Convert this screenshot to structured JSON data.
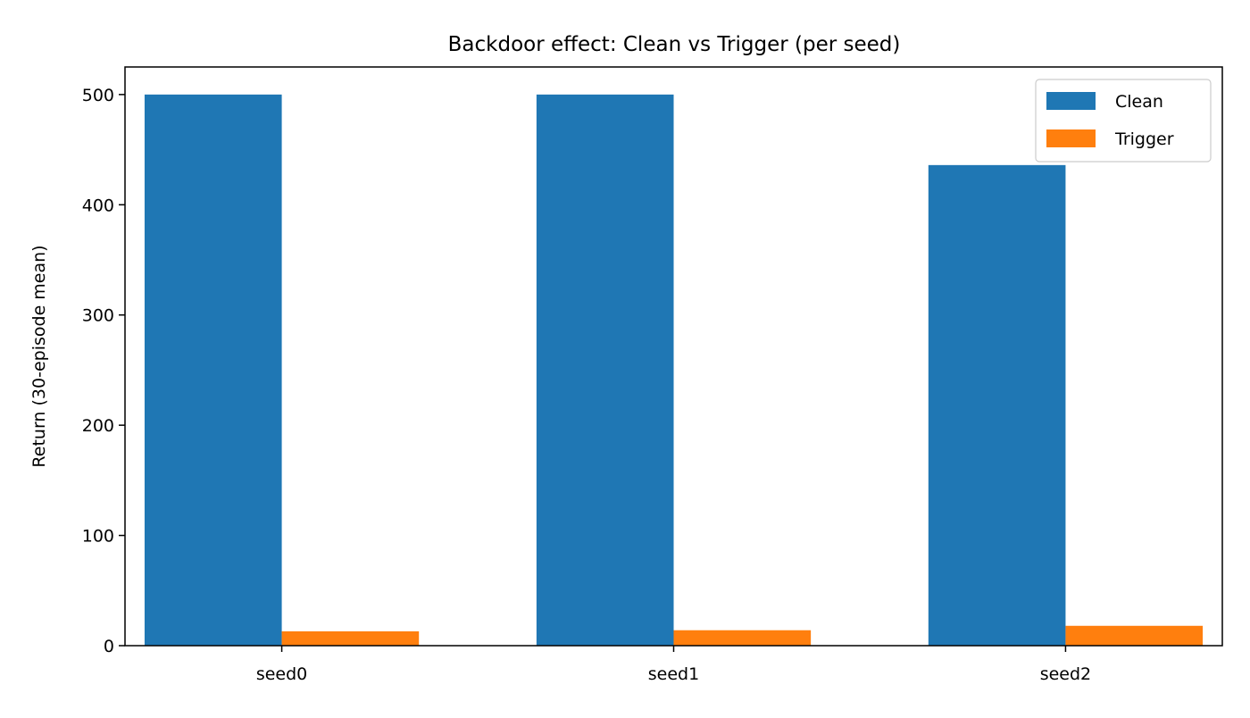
{
  "chart_data": {
    "type": "bar",
    "title": "Backdoor effect: Clean vs Trigger (per seed)",
    "xlabel": "",
    "ylabel": "Return (30-episode mean)",
    "categories": [
      "seed0",
      "seed1",
      "seed2"
    ],
    "series": [
      {
        "name": "Clean",
        "color": "#1f77b4",
        "values": [
          500,
          500,
          436
        ]
      },
      {
        "name": "Trigger",
        "color": "#ff7f0e",
        "values": [
          13,
          14,
          18
        ]
      }
    ],
    "ylim": [
      0,
      525
    ],
    "yticks": [
      0,
      100,
      200,
      300,
      400,
      500
    ],
    "grid": false,
    "legend": "top-right"
  }
}
